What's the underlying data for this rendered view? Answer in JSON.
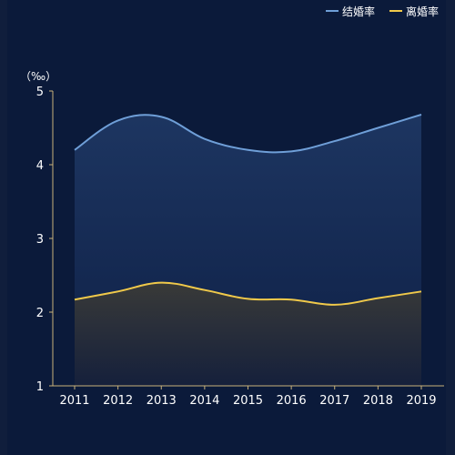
{
  "chart_data": {
    "type": "area",
    "unit_label": "（‰）",
    "categories": [
      "2011",
      "2012",
      "2013",
      "2014",
      "2015",
      "2016",
      "2017",
      "2018",
      "2019"
    ],
    "ylim": [
      1,
      5
    ],
    "yticks": [
      1,
      2,
      3,
      4,
      5
    ],
    "legend_position": "top-right",
    "series": [
      {
        "name": "结婚率",
        "color": "#6f9fd8",
        "values": [
          4.2,
          4.6,
          4.65,
          4.35,
          4.2,
          4.18,
          4.32,
          4.5,
          4.68
        ]
      },
      {
        "name": "离婚率",
        "color": "#f0c94a",
        "values": [
          2.17,
          2.28,
          2.4,
          2.3,
          2.18,
          2.17,
          2.1,
          2.19,
          2.28
        ]
      }
    ],
    "colors": {
      "background": "#0b1a3a",
      "axis": "#c9b27a",
      "tick_text": "#ffffff",
      "area1_top": "#1d3560",
      "area2_top": "#3a3a3a"
    }
  }
}
